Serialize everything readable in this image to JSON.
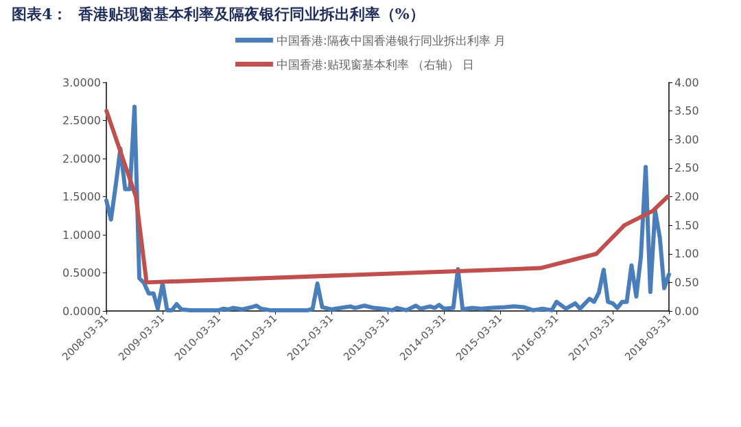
{
  "chart_data": {
    "type": "line",
    "title": "图表4：  香港贴现窗基本利率及隔夜银行同业拆出利率（%）",
    "xlim": [
      "2008-03-31",
      "2018-03-31"
    ],
    "xticks": [
      "2008-03-31",
      "2009-03-31",
      "2010-03-31",
      "2011-03-31",
      "2012-03-31",
      "2013-03-31",
      "2014-03-31",
      "2015-03-31",
      "2016-03-31",
      "2017-03-31",
      "2018-03-31"
    ],
    "ylim": [
      0,
      3
    ],
    "yticks": [
      {
        "value": 0,
        "label": "0.0000"
      },
      {
        "value": 0.5,
        "label": "0.5000"
      },
      {
        "value": 1,
        "label": "1.0000"
      },
      {
        "value": 1.5,
        "label": "1.5000"
      },
      {
        "value": 2,
        "label": "2.0000"
      },
      {
        "value": 2.5,
        "label": "2.5000"
      },
      {
        "value": 3,
        "label": "3.0000"
      }
    ],
    "y2lim": [
      0,
      4
    ],
    "y2ticks": [
      {
        "value": 0,
        "label": "0.00"
      },
      {
        "value": 0.5,
        "label": "0.50"
      },
      {
        "value": 1,
        "label": "1.00"
      },
      {
        "value": 1.5,
        "label": "1.50"
      },
      {
        "value": 2,
        "label": "2.00"
      },
      {
        "value": 2.5,
        "label": "2.50"
      },
      {
        "value": 3,
        "label": "3.00"
      },
      {
        "value": 3.5,
        "label": "3.50"
      },
      {
        "value": 4,
        "label": "4.00"
      }
    ],
    "grid": false,
    "legend": "top",
    "marker": "none",
    "line_style": "solid",
    "series": [
      {
        "name": "中国香港:隔夜中国香港银行同业拆出利率 月",
        "color": "#4a7ebb",
        "x": [
          "2008-03-31",
          "2008-04-30",
          "2008-05-31",
          "2008-06-30",
          "2008-07-31",
          "2008-08-31",
          "2008-09-30",
          "2008-10-31",
          "2008-11-30",
          "2008-12-31",
          "2009-01-31",
          "2009-02-28",
          "2009-03-31",
          "2009-04-30",
          "2009-05-31",
          "2009-06-30",
          "2009-07-31",
          "2009-09-30",
          "2009-12-31",
          "2010-03-31",
          "2010-04-30",
          "2010-05-31",
          "2010-06-30",
          "2010-08-31",
          "2010-10-31",
          "2010-11-30",
          "2010-12-31",
          "2011-02-28",
          "2011-06-30",
          "2011-10-31",
          "2011-11-30",
          "2011-12-31",
          "2012-01-31",
          "2012-03-31",
          "2012-05-31",
          "2012-07-31",
          "2012-08-31",
          "2012-10-31",
          "2012-12-31",
          "2013-02-28",
          "2013-04-30",
          "2013-05-31",
          "2013-07-31",
          "2013-09-30",
          "2013-10-31",
          "2013-12-31",
          "2014-01-31",
          "2014-02-28",
          "2014-03-31",
          "2014-05-31",
          "2014-06-30",
          "2014-07-31",
          "2014-09-30",
          "2014-11-30",
          "2015-01-31",
          "2015-04-30",
          "2015-06-30",
          "2015-08-31",
          "2015-10-31",
          "2015-12-31",
          "2016-02-29",
          "2016-03-31",
          "2016-05-31",
          "2016-07-31",
          "2016-08-31",
          "2016-10-31",
          "2016-11-30",
          "2016-12-31",
          "2017-01-31",
          "2017-02-28",
          "2017-03-31",
          "2017-04-30",
          "2017-05-31",
          "2017-06-30",
          "2017-07-31",
          "2017-08-31",
          "2017-09-30",
          "2017-10-31",
          "2017-11-30",
          "2017-12-31",
          "2018-01-31",
          "2018-02-28",
          "2018-03-31"
        ],
        "values": [
          1.45,
          1.2,
          1.65,
          2.13,
          1.6,
          1.6,
          2.68,
          0.43,
          0.37,
          0.23,
          0.23,
          0.03,
          0.36,
          0.01,
          0.01,
          0.09,
          0.02,
          0.01,
          0.01,
          0.01,
          0.03,
          0.02,
          0.04,
          0.02,
          0.05,
          0.07,
          0.03,
          0.01,
          0.01,
          0.01,
          0.03,
          0.36,
          0.05,
          0.02,
          0.04,
          0.06,
          0.04,
          0.07,
          0.04,
          0.03,
          0.01,
          0.04,
          0.01,
          0.07,
          0.03,
          0.06,
          0.04,
          0.08,
          0.03,
          0.04,
          0.55,
          0.02,
          0.04,
          0.03,
          0.04,
          0.05,
          0.06,
          0.05,
          0.01,
          0.03,
          0.01,
          0.12,
          0.03,
          0.1,
          0.03,
          0.16,
          0.12,
          0.24,
          0.54,
          0.12,
          0.1,
          0.04,
          0.12,
          0.12,
          0.6,
          0.19,
          0.72,
          1.89,
          0.25,
          1.32,
          0.96,
          0.3,
          0.48
        ]
      },
      {
        "name": "中国香港:贴现窗基本利率 （右轴） 日",
        "color": "#c0504d",
        "axis": "y2",
        "x": [
          "2008-04-01",
          "2008-10-09",
          "2008-12-17",
          "2015-12-17",
          "2016-12-15",
          "2017-06-15",
          "2017-12-15",
          "2018-03-22"
        ],
        "values": [
          3.5,
          2.0,
          0.5,
          0.75,
          1.0,
          1.5,
          1.75,
          2.0
        ]
      }
    ]
  }
}
